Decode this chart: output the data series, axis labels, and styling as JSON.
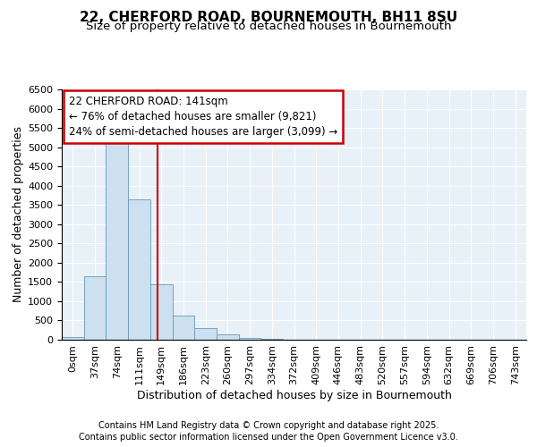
{
  "title_line1": "22, CHERFORD ROAD, BOURNEMOUTH, BH11 8SU",
  "title_line2": "Size of property relative to detached houses in Bournemouth",
  "xlabel": "Distribution of detached houses by size in Bournemouth",
  "ylabel": "Number of detached properties",
  "bin_labels": [
    "0sqm",
    "37sqm",
    "74sqm",
    "111sqm",
    "149sqm",
    "186sqm",
    "223sqm",
    "260sqm",
    "297sqm",
    "334sqm",
    "372sqm",
    "409sqm",
    "446sqm",
    "483sqm",
    "520sqm",
    "557sqm",
    "594sqm",
    "632sqm",
    "669sqm",
    "706sqm",
    "743sqm"
  ],
  "bar_heights": [
    65,
    1650,
    5100,
    3650,
    1430,
    620,
    310,
    145,
    55,
    15,
    5,
    2,
    0,
    0,
    0,
    0,
    0,
    0,
    0,
    0,
    0
  ],
  "bar_color": "#cce0f0",
  "bar_edge_color": "#6699bb",
  "vline_x_index": 3.81,
  "vline_color": "#cc0000",
  "annotation_title": "22 CHERFORD ROAD: 141sqm",
  "annotation_line2": "← 76% of detached houses are smaller (9,821)",
  "annotation_line3": "24% of semi-detached houses are larger (3,099) →",
  "annotation_box_color": "#cc0000",
  "ylim": [
    0,
    6500
  ],
  "yticks": [
    0,
    500,
    1000,
    1500,
    2000,
    2500,
    3000,
    3500,
    4000,
    4500,
    5000,
    5500,
    6000,
    6500
  ],
  "footnote_line1": "Contains HM Land Registry data © Crown copyright and database right 2025.",
  "footnote_line2": "Contains public sector information licensed under the Open Government Licence v3.0.",
  "fig_bg_color": "#ffffff",
  "plot_bg_color": "#e8f0f8",
  "grid_color": "#ffffff",
  "title_fontsize": 11,
  "subtitle_fontsize": 9.5,
  "axis_label_fontsize": 9,
  "tick_fontsize": 8,
  "annotation_fontsize": 8.5,
  "footnote_fontsize": 7
}
